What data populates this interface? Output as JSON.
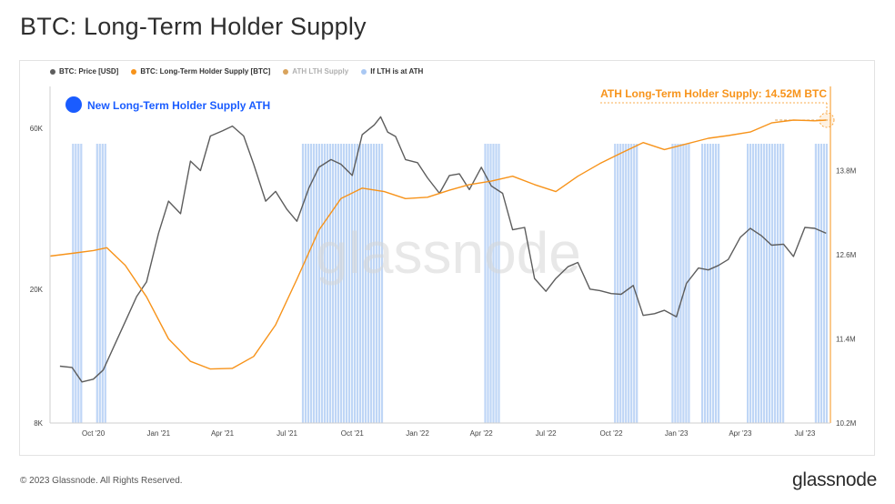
{
  "title": "BTC: Long-Term Holder Supply",
  "footer": {
    "copyright": "© 2023 Glassnode. All Rights Reserved.",
    "logo_text": "glassnode"
  },
  "watermark": "glassnode",
  "legend": [
    {
      "label": "BTC: Price [USD]",
      "color": "#5d5d5d"
    },
    {
      "label": "BTC: Long-Term Holder Supply [BTC]",
      "color": "#f7931a"
    },
    {
      "label": "ATH LTH Supply",
      "color": "#d9a35c"
    },
    {
      "label": "If LTH is at ATH",
      "color": "#a9c8f3"
    }
  ],
  "annotations": {
    "ath_marker_label": "New Long-Term Holder Supply ATH",
    "ath_marker_color": "#1a5cff",
    "ath_supply_label": "ATH Long-Term Holder Supply: 14.52M BTC"
  },
  "chart_data": {
    "type": "line",
    "x_ticks": [
      "Oct '20",
      "Jan '21",
      "Apr '21",
      "Jul '21",
      "Oct '21",
      "Jan '22",
      "Apr '22",
      "Jul '22",
      "Oct '22",
      "Jan '23",
      "Apr '23",
      "Jul '23"
    ],
    "left_axis": {
      "label": "",
      "ticks": [
        "8K",
        "20K",
        "60K"
      ],
      "scale": "log",
      "range": [
        8000,
        80000
      ]
    },
    "right_axis": {
      "label": "",
      "ticks": [
        "10.2M",
        "11.4M",
        "12.6M",
        "13.8M"
      ],
      "range": [
        10200000,
        15000000
      ]
    },
    "series": [
      {
        "name": "BTC: Price [USD]",
        "axis": "left",
        "color": "#5d5d5d",
        "x": [
          "2020-08-15",
          "2020-09-01",
          "2020-09-15",
          "2020-10-01",
          "2020-10-15",
          "2020-11-01",
          "2020-11-15",
          "2020-12-01",
          "2020-12-15",
          "2021-01-01",
          "2021-01-15",
          "2021-02-01",
          "2021-02-15",
          "2021-03-01",
          "2021-03-15",
          "2021-04-01",
          "2021-04-15",
          "2021-05-01",
          "2021-05-15",
          "2021-06-01",
          "2021-06-15",
          "2021-07-01",
          "2021-07-15",
          "2021-08-01",
          "2021-08-15",
          "2021-09-01",
          "2021-09-15",
          "2021-10-01",
          "2021-10-15",
          "2021-11-01",
          "2021-11-10",
          "2021-11-20",
          "2021-12-01",
          "2021-12-15",
          "2022-01-01",
          "2022-01-15",
          "2022-02-01",
          "2022-02-15",
          "2022-03-01",
          "2022-03-15",
          "2022-04-01",
          "2022-04-15",
          "2022-05-01",
          "2022-05-15",
          "2022-06-01",
          "2022-06-15",
          "2022-07-01",
          "2022-07-15",
          "2022-08-01",
          "2022-08-15",
          "2022-09-01",
          "2022-09-15",
          "2022-10-01",
          "2022-10-15",
          "2022-11-01",
          "2022-11-15",
          "2022-12-01",
          "2022-12-15",
          "2023-01-01",
          "2023-01-15",
          "2023-02-01",
          "2023-02-15",
          "2023-03-01",
          "2023-03-15",
          "2023-04-01",
          "2023-04-15",
          "2023-05-01",
          "2023-05-15",
          "2023-06-01",
          "2023-06-15",
          "2023-07-01",
          "2023-07-15",
          "2023-07-31"
        ],
        "values": [
          11800,
          11700,
          10600,
          10800,
          11500,
          13800,
          16000,
          19000,
          21000,
          29300,
          36500,
          33500,
          48000,
          45000,
          57000,
          59000,
          61000,
          57000,
          47000,
          36500,
          39000,
          34500,
          31800,
          40000,
          46000,
          48500,
          47000,
          43500,
          57500,
          61500,
          65000,
          58500,
          56800,
          48500,
          47500,
          42800,
          38500,
          43500,
          44000,
          39500,
          46000,
          40500,
          38500,
          30000,
          30500,
          21500,
          19700,
          21500,
          23300,
          24000,
          20000,
          19800,
          19400,
          19300,
          20500,
          16700,
          16900,
          17300,
          16550,
          20800,
          23100,
          22800,
          23500,
          24500,
          28500,
          30300,
          28800,
          27000,
          27200,
          25000,
          30500,
          30300,
          29300
        ]
      },
      {
        "name": "BTC: Long-Term Holder Supply [BTC]",
        "axis": "right",
        "color": "#f7931a",
        "x": [
          "2020-08-01",
          "2020-09-01",
          "2020-10-01",
          "2020-10-20",
          "2020-11-15",
          "2020-12-15",
          "2021-01-15",
          "2021-02-15",
          "2021-03-15",
          "2021-04-15",
          "2021-05-15",
          "2021-06-15",
          "2021-07-15",
          "2021-08-15",
          "2021-09-15",
          "2021-10-15",
          "2021-11-15",
          "2021-12-15",
          "2022-01-15",
          "2022-02-15",
          "2022-03-15",
          "2022-04-15",
          "2022-05-15",
          "2022-06-15",
          "2022-07-15",
          "2022-08-15",
          "2022-09-15",
          "2022-10-15",
          "2022-11-15",
          "2022-12-15",
          "2023-01-15",
          "2023-02-15",
          "2023-03-15",
          "2023-04-15",
          "2023-05-15",
          "2023-06-15",
          "2023-07-15",
          "2023-07-31"
        ],
        "values": [
          12580,
          12620,
          12660,
          12700,
          12450,
          12000,
          11400,
          11080,
          10970,
          10980,
          11150,
          11600,
          12250,
          12950,
          13400,
          13550,
          13500,
          13400,
          13420,
          13520,
          13600,
          13650,
          13720,
          13600,
          13500,
          13720,
          13900,
          14050,
          14200,
          14100,
          14180,
          14260,
          14300,
          14350,
          14480,
          14520,
          14510,
          14520
        ]
      },
      {
        "name": "ATH LTH Supply",
        "axis": "right",
        "color": "#d9a35c",
        "value": 14520
      }
    ],
    "ath_highlight_periods": [
      [
        "2020-09-01",
        "2020-09-15"
      ],
      [
        "2020-10-05",
        "2020-10-20"
      ],
      [
        "2021-07-22",
        "2021-11-12"
      ],
      [
        "2022-04-05",
        "2022-04-25"
      ],
      [
        "2022-10-05",
        "2022-11-05"
      ],
      [
        "2022-12-25",
        "2023-01-20"
      ],
      [
        "2023-02-05",
        "2023-03-01"
      ],
      [
        "2023-04-10",
        "2023-05-30"
      ],
      [
        "2023-07-15",
        "2023-07-31"
      ]
    ]
  }
}
